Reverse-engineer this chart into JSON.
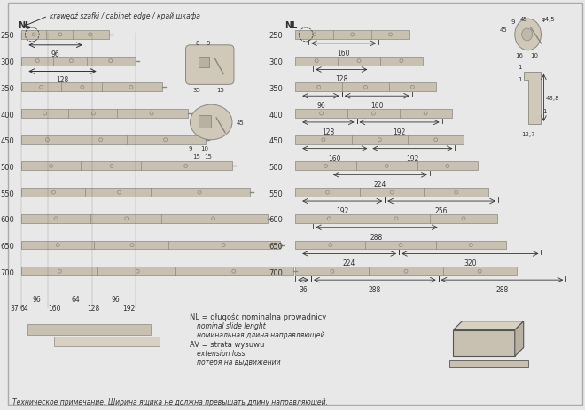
{
  "bg_color": "#e8e8e8",
  "title_note": "krawędź szafki / cabinet edge / край шкафа",
  "NL_label": "NL",
  "nl_rows": [
    250,
    300,
    350,
    400,
    450,
    500,
    550,
    600,
    650,
    700
  ],
  "left_dim_bottom": [
    "37",
    "64",
    "160",
    "128",
    "192"
  ],
  "left_dim_mid": [
    "96",
    "64",
    "96"
  ],
  "right_dims": {
    "250": [
      "160"
    ],
    "300": [
      "128"
    ],
    "350": [
      "96",
      "160"
    ],
    "400": [
      "128",
      "192"
    ],
    "450": [
      "160",
      "192"
    ],
    "500": [
      "224"
    ],
    "550": [
      "192",
      "256"
    ],
    "600": [
      "288"
    ],
    "650": [
      "224",
      "320"
    ],
    "700": [
      "36",
      "288",
      "288"
    ]
  },
  "legend_text": [
    "NL = długość nominalna prowadnicy",
    "nominal slide lenght",
    "номинальная длина направляющей",
    "AV = strata wysuwu",
    "extension loss",
    "потеря на выдвижении"
  ],
  "bottom_note": "Техническое примечание: Ширина ящика не должна превышать длину направляющей.",
  "rail_color": "#c8c0b0",
  "rail_edge_color": "#888880",
  "dim_color": "#333333",
  "text_color": "#333333"
}
